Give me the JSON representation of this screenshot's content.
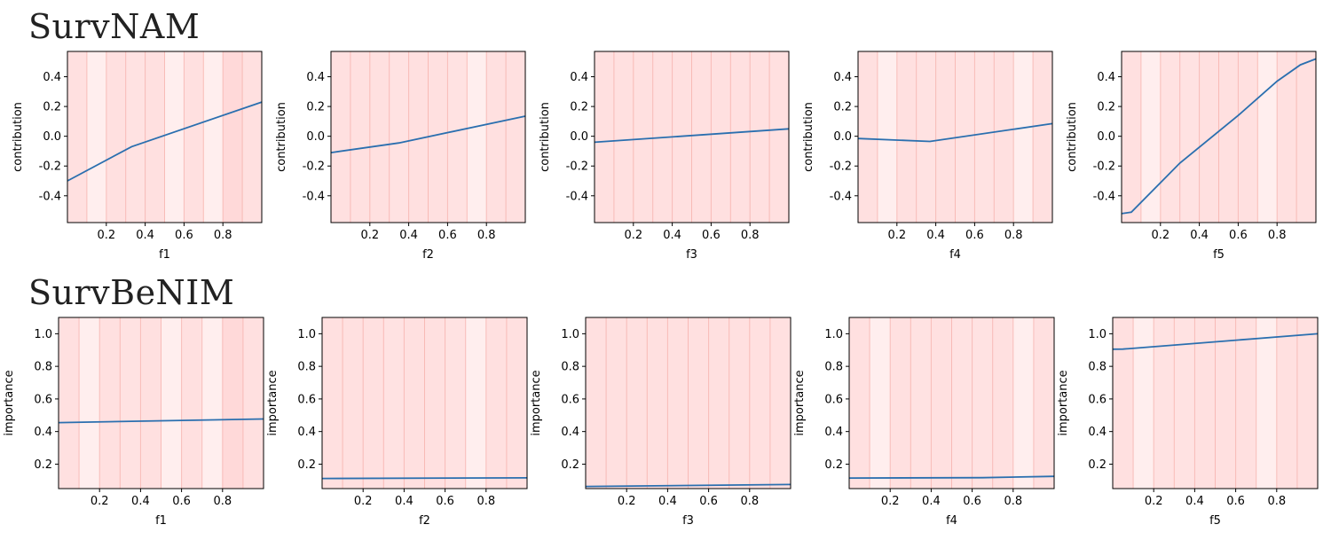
{
  "rows": [
    {
      "title": "SurvNAM"
    },
    {
      "title": "SurvBeNIM"
    }
  ],
  "colors": {
    "line": "#2a6faf",
    "band_edge": "#f4a09a",
    "band_fills": [
      "#ffe4e4",
      "#ffeeee",
      "#ffe0e0",
      "#ffd9d9",
      "#ffe2e2",
      "#ffe8e8",
      "#ffdcdc",
      "#ffe6e6",
      "#ffe9e9",
      "#ffdede"
    ]
  },
  "chart_data": [
    {
      "type": "line",
      "row": 0,
      "xlabel": "f1",
      "ylabel": "contribution",
      "xlim": [
        0,
        1
      ],
      "ylim": [
        -0.58,
        0.57
      ],
      "xticks": [
        "0.2",
        "0.4",
        "0.6",
        "0.8"
      ],
      "yticks": [
        "-0.4",
        "-0.2",
        "0.0",
        "0.2",
        "0.4"
      ],
      "x": [
        0,
        0.33,
        1
      ],
      "y": [
        -0.3,
        -0.07,
        0.23
      ],
      "bands": [
        2,
        1,
        2,
        4,
        2,
        1,
        2,
        1,
        3,
        2
      ]
    },
    {
      "type": "line",
      "row": 0,
      "xlabel": "f2",
      "ylabel": "contribution",
      "xlim": [
        0,
        1
      ],
      "ylim": [
        -0.58,
        0.57
      ],
      "xticks": [
        "0.2",
        "0.4",
        "0.6",
        "0.8"
      ],
      "yticks": [
        "-0.4",
        "-0.2",
        "0.0",
        "0.2",
        "0.4"
      ],
      "x": [
        0,
        0.35,
        1
      ],
      "y": [
        -0.11,
        -0.045,
        0.135
      ],
      "bands": [
        2,
        2,
        2,
        4,
        2,
        2,
        4,
        1,
        2,
        2
      ]
    },
    {
      "type": "line",
      "row": 0,
      "xlabel": "f3",
      "ylabel": "contribution",
      "xlim": [
        0,
        1
      ],
      "ylim": [
        -0.58,
        0.57
      ],
      "xticks": [
        "0.2",
        "0.4",
        "0.6",
        "0.8"
      ],
      "yticks": [
        "-0.4",
        "-0.2",
        "0.0",
        "0.2",
        "0.4"
      ],
      "x": [
        0,
        1
      ],
      "y": [
        -0.04,
        0.05
      ],
      "bands": [
        2,
        2,
        2,
        2,
        2,
        2,
        2,
        2,
        2,
        2
      ]
    },
    {
      "type": "line",
      "row": 0,
      "xlabel": "f4",
      "ylabel": "contribution",
      "xlim": [
        0,
        1
      ],
      "ylim": [
        -0.58,
        0.57
      ],
      "xticks": [
        "0.2",
        "0.4",
        "0.6",
        "0.8"
      ],
      "yticks": [
        "-0.4",
        "-0.2",
        "0.0",
        "0.2",
        "0.4"
      ],
      "x": [
        0,
        0.37,
        1
      ],
      "y": [
        -0.015,
        -0.035,
        0.085
      ],
      "bands": [
        2,
        1,
        2,
        4,
        2,
        4,
        4,
        2,
        1,
        2
      ]
    },
    {
      "type": "line",
      "row": 0,
      "xlabel": "f5",
      "ylabel": "contribution",
      "xlim": [
        0,
        1
      ],
      "ylim": [
        -0.58,
        0.57
      ],
      "xticks": [
        "0.2",
        "0.4",
        "0.6",
        "0.8"
      ],
      "yticks": [
        "-0.4",
        "-0.2",
        "0.0",
        "0.2",
        "0.4"
      ],
      "x": [
        0,
        0.05,
        0.3,
        0.6,
        0.8,
        0.92,
        1
      ],
      "y": [
        -0.52,
        -0.51,
        -0.18,
        0.14,
        0.37,
        0.48,
        0.52
      ],
      "bands": [
        2,
        1,
        4,
        4,
        2,
        2,
        2,
        1,
        2,
        2
      ]
    },
    {
      "type": "line",
      "row": 1,
      "xlabel": "f1",
      "ylabel": "importance",
      "xlim": [
        0,
        1
      ],
      "ylim": [
        0.05,
        1.1
      ],
      "xticks": [
        "0.2",
        "0.4",
        "0.6",
        "0.8"
      ],
      "yticks": [
        "0.2",
        "0.4",
        "0.6",
        "0.8",
        "1.0"
      ],
      "x": [
        0,
        1
      ],
      "y": [
        0.455,
        0.477
      ],
      "bands": [
        2,
        1,
        2,
        4,
        2,
        1,
        2,
        1,
        3,
        2
      ]
    },
    {
      "type": "line",
      "row": 1,
      "xlabel": "f2",
      "ylabel": "importance",
      "xlim": [
        0,
        1
      ],
      "ylim": [
        0.05,
        1.1
      ],
      "xticks": [
        "0.2",
        "0.4",
        "0.6",
        "0.8"
      ],
      "yticks": [
        "0.2",
        "0.4",
        "0.6",
        "0.8",
        "1.0"
      ],
      "x": [
        0,
        1
      ],
      "y": [
        0.112,
        0.116
      ],
      "bands": [
        2,
        2,
        2,
        4,
        2,
        2,
        4,
        1,
        2,
        2
      ]
    },
    {
      "type": "line",
      "row": 1,
      "xlabel": "f3",
      "ylabel": "importance",
      "xlim": [
        0,
        1
      ],
      "ylim": [
        0.05,
        1.1
      ],
      "xticks": [
        "0.2",
        "0.4",
        "0.6",
        "0.8"
      ],
      "yticks": [
        "0.2",
        "0.4",
        "0.6",
        "0.8",
        "1.0"
      ],
      "x": [
        0,
        1
      ],
      "y": [
        0.063,
        0.075
      ],
      "bands": [
        2,
        2,
        2,
        2,
        2,
        2,
        2,
        2,
        2,
        2
      ]
    },
    {
      "type": "line",
      "row": 1,
      "xlabel": "f4",
      "ylabel": "importance",
      "xlim": [
        0,
        1
      ],
      "ylim": [
        0.05,
        1.1
      ],
      "xticks": [
        "0.2",
        "0.4",
        "0.6",
        "0.8"
      ],
      "yticks": [
        "0.2",
        "0.4",
        "0.6",
        "0.8",
        "1.0"
      ],
      "x": [
        0,
        0.65,
        1
      ],
      "y": [
        0.115,
        0.117,
        0.125
      ],
      "bands": [
        2,
        1,
        2,
        4,
        2,
        4,
        4,
        2,
        1,
        2
      ]
    },
    {
      "type": "line",
      "row": 1,
      "xlabel": "f5",
      "ylabel": "importance",
      "xlim": [
        0,
        1
      ],
      "ylim": [
        0.05,
        1.1
      ],
      "xticks": [
        "0.2",
        "0.4",
        "0.6",
        "0.8"
      ],
      "yticks": [
        "0.2",
        "0.4",
        "0.6",
        "0.8",
        "1.0"
      ],
      "x": [
        0,
        0.05,
        1
      ],
      "y": [
        0.905,
        0.906,
        1.0
      ],
      "bands": [
        2,
        1,
        4,
        4,
        2,
        2,
        2,
        1,
        2,
        2
      ]
    }
  ]
}
